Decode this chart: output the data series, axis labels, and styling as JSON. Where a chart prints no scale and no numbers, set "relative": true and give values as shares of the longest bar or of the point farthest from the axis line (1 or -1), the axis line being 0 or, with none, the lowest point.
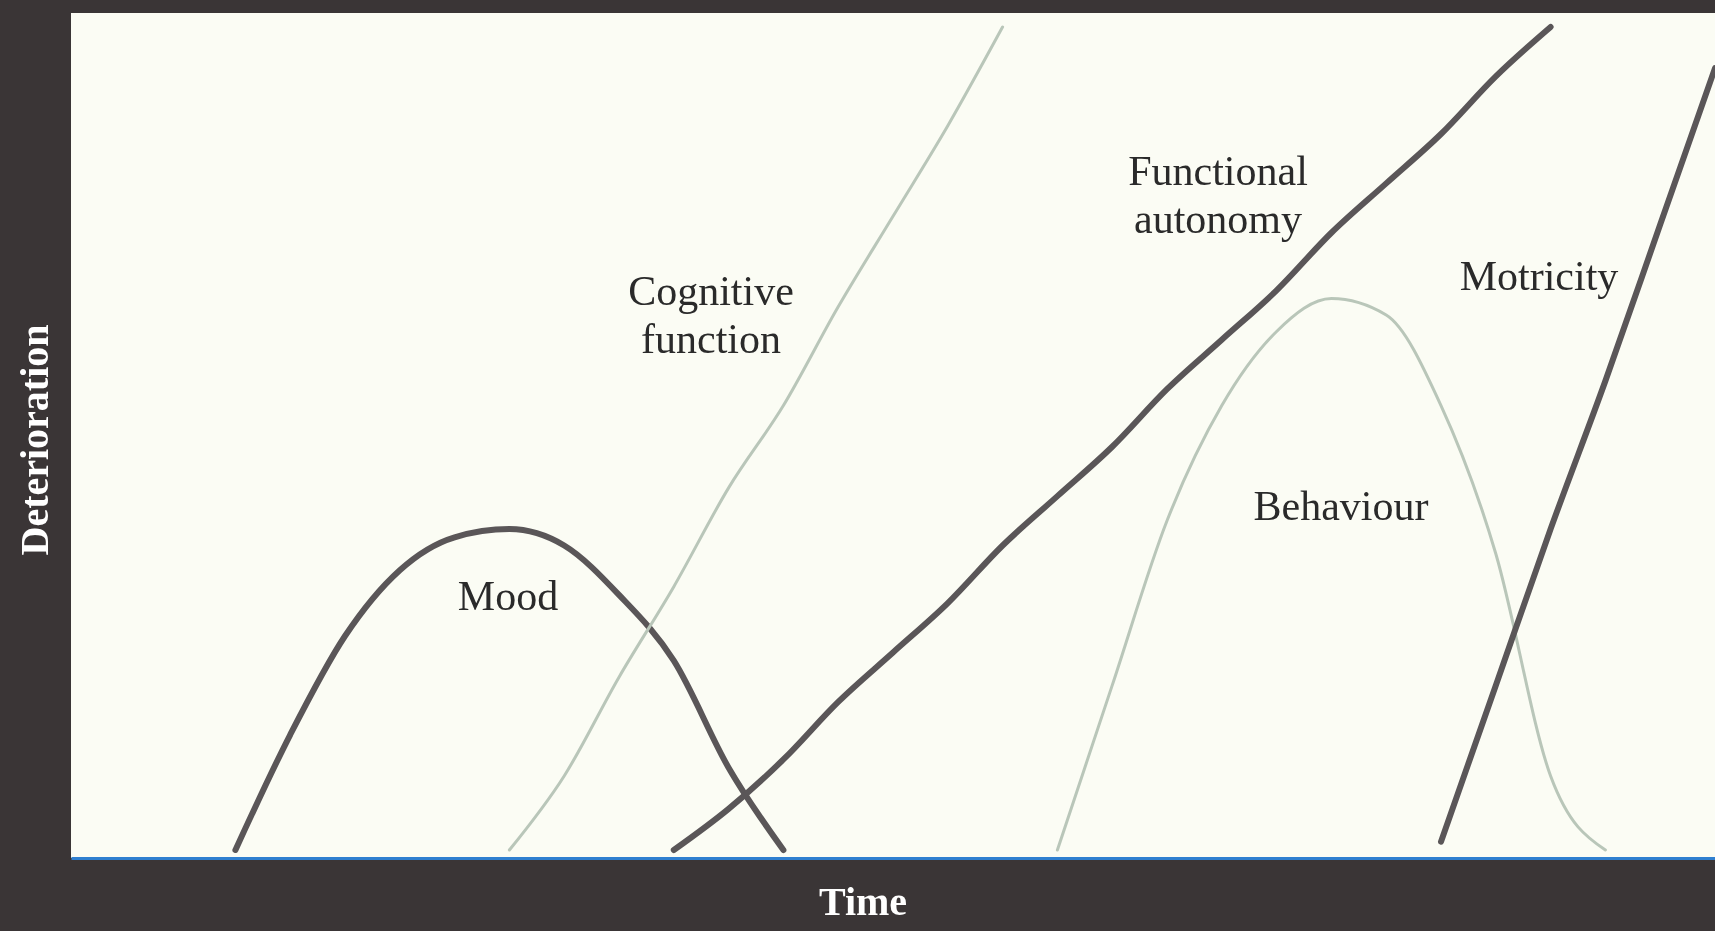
{
  "chart_data": {
    "type": "line",
    "relative": true,
    "xlabel": "Time",
    "ylabel": "Deterioration",
    "legend": false,
    "grid": false,
    "categories": [
      null,
      null,
      null,
      null,
      null,
      null,
      null,
      null,
      null,
      null,
      null,
      null,
      null,
      null,
      null,
      null,
      null,
      null,
      null,
      null,
      null,
      null,
      null,
      null,
      null,
      null,
      null,
      null,
      null,
      null,
      null
    ],
    "series": [
      {
        "name": "Mood",
        "color": "#5a5658",
        "values": [
          null,
          null,
          null,
          0,
          0.14,
          0.26,
          0.34,
          0.38,
          0.39,
          0.37,
          0.31,
          0.23,
          0.1,
          0,
          null,
          null,
          null,
          null,
          null,
          null,
          null,
          null,
          null,
          null,
          null,
          null,
          null,
          null,
          null,
          null,
          null
        ]
      },
      {
        "name": "Cognitive function",
        "color": "#b9c6b9",
        "values": [
          null,
          null,
          null,
          null,
          null,
          null,
          null,
          null,
          0,
          0.09,
          0.21,
          0.32,
          0.44,
          0.54,
          0.66,
          0.77,
          0.88,
          1.0,
          null,
          null,
          null,
          null,
          null,
          null,
          null,
          null,
          null,
          null,
          null,
          null,
          null
        ]
      },
      {
        "name": "Functional autonomy",
        "color": "#5a5658",
        "values": [
          null,
          null,
          null,
          null,
          null,
          null,
          null,
          null,
          null,
          null,
          null,
          0,
          0.05,
          0.11,
          0.18,
          0.24,
          0.3,
          0.37,
          0.43,
          0.49,
          0.56,
          0.62,
          0.68,
          0.75,
          0.81,
          0.87,
          0.94,
          1,
          null,
          null,
          null
        ]
      },
      {
        "name": "Behaviour",
        "color": "#b9c6b9",
        "values": [
          null,
          null,
          null,
          null,
          null,
          null,
          null,
          null,
          null,
          null,
          null,
          null,
          null,
          null,
          null,
          null,
          null,
          null,
          0,
          0.2,
          0.4,
          0.54,
          0.63,
          0.67,
          0.65,
          0.54,
          0.36,
          0.09,
          0,
          null,
          null
        ]
      },
      {
        "name": "Motricity",
        "color": "#5a5658",
        "values": [
          null,
          null,
          null,
          null,
          null,
          null,
          null,
          null,
          null,
          null,
          null,
          null,
          null,
          null,
          null,
          null,
          null,
          null,
          null,
          null,
          null,
          null,
          null,
          null,
          null,
          0.01,
          0.2,
          0.39,
          0.57,
          0.76,
          0.95
        ]
      }
    ]
  }
}
